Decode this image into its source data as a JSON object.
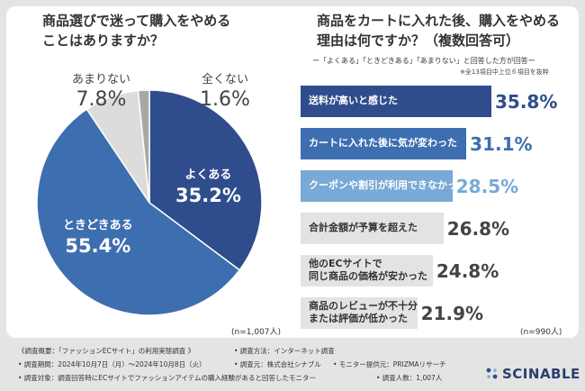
{
  "left_title": {
    "line1": "商品選びで迷って購入をやめる",
    "line2": "ことはありますか？"
  },
  "right_title": {
    "line1": "商品をカートに入れた後、購入をやめる",
    "line2": "理由は何ですか？（複数回答可）",
    "subtitle": "ー「よくある」「ときどきある」「あまりない」と回答した方が回答ー",
    "note": "※全13項目中上位６項目を抜粋"
  },
  "pie_n": "(n=1,007人)",
  "bar_n": "(n=990人)",
  "colors": {
    "navy": "#2f4d8c",
    "blue": "#3d6eb0",
    "lightblue": "#79a9d6",
    "gray": "#dcdcdc",
    "darkgray": "#a8a8a8",
    "text_navy": "#2f4d8c",
    "text_gray": "#444444"
  },
  "chart_data": [
    {
      "type": "pie",
      "title": "商品選びで迷って購入をやめることはありますか？",
      "slices": [
        {
          "name": "よくある",
          "value": 35.2,
          "label": "35.2%",
          "color": "#2f4d8c"
        },
        {
          "name": "ときどきある",
          "value": 55.4,
          "label": "55.4%",
          "color": "#3d6eb0"
        },
        {
          "name": "あまりない",
          "value": 7.8,
          "label": "7.8%",
          "color": "#dcdcdc"
        },
        {
          "name": "全くない",
          "value": 1.6,
          "label": "1.6%",
          "color": "#a8a8a8"
        }
      ]
    },
    {
      "type": "bar",
      "orientation": "horizontal",
      "title": "商品をカートに入れた後、購入をやめる理由は何ですか？（複数回答可）",
      "xlim": [
        0,
        35.8
      ],
      "items": [
        {
          "lines": [
            "送料が高いと感じた"
          ],
          "value": 35.8,
          "label": "35.8%",
          "color": "#2f4d8c",
          "label_color": "#ffffff",
          "value_color": "#2f4d8c"
        },
        {
          "lines": [
            "カートに入れた後に気が変わった"
          ],
          "value": 31.1,
          "label": "31.1%",
          "color": "#3d6eb0",
          "label_color": "#ffffff",
          "value_color": "#3d6eb0"
        },
        {
          "lines": [
            "クーポンや割引が利用できなかった"
          ],
          "value": 28.5,
          "label": "28.5%",
          "color": "#79a9d6",
          "label_color": "#ffffff",
          "value_color": "#79a9d6"
        },
        {
          "lines": [
            "合計金額が予算を超えた"
          ],
          "value": 26.8,
          "label": "26.8%",
          "color": "#e3e3e3",
          "label_color": "#333333",
          "value_color": "#444444"
        },
        {
          "lines": [
            "他のECサイトで",
            "同じ商品の価格が安かった"
          ],
          "value": 24.8,
          "label": "24.8%",
          "color": "#e3e3e3",
          "label_color": "#333333",
          "value_color": "#444444"
        },
        {
          "lines": [
            "商品のレビューが不十分",
            "または評価が低かった"
          ],
          "value": 21.9,
          "label": "21.9%",
          "color": "#e3e3e3",
          "label_color": "#333333",
          "value_color": "#444444"
        }
      ]
    }
  ],
  "footer": {
    "line1_left": "《調査概要：「ファッションECサイト」の利用実態調査 》",
    "line1_right": "• 調査方法：インターネット調査",
    "line2_left": "• 調査期間：2024年10月7日（月）〜2024年10月8日（火）",
    "line2_mid": "• 調査元：株式会社シナブル",
    "line2_right": "• モニター提供元：PRIZMAリサーチ",
    "line3_left": "• 調査対象：調査回答時にECサイトでファッションアイテムの購入経験があると回答したモニター",
    "line3_right": "• 調査人数：1,007人"
  },
  "logo": {
    "text": "SCINABLE",
    "icon": "scinable-dots-logo"
  }
}
